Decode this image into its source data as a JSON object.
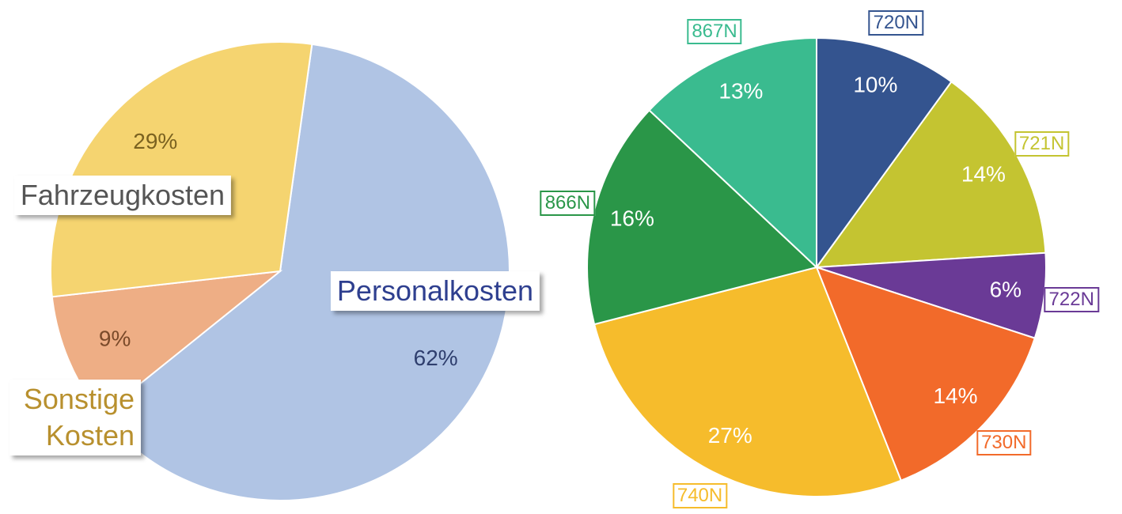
{
  "chart_data": [
    {
      "type": "pie",
      "categories": [
        "Personalkosten",
        "Sonstige Kosten",
        "Fahrzeugkosten"
      ],
      "values": [
        62,
        9,
        29
      ],
      "value_labels": [
        "62%",
        "9%",
        "29%"
      ],
      "colors": [
        "#b0c4e4",
        "#eeae85",
        "#f5d470"
      ],
      "label_colors": [
        "#2e3f8f",
        "#b8902e",
        "#555555"
      ],
      "value_label_colors": [
        "#2f3f6e",
        "#7a4a2a",
        "#7a6220"
      ]
    },
    {
      "type": "pie",
      "categories": [
        "720N",
        "721N",
        "722N",
        "730N",
        "740N",
        "866N",
        "867N"
      ],
      "values": [
        10,
        14,
        6,
        14,
        27,
        16,
        13
      ],
      "value_labels": [
        "10%",
        "14%",
        "6%",
        "14%",
        "27%",
        "16%",
        "13%"
      ],
      "colors": [
        "#34548f",
        "#c4c431",
        "#6a3a96",
        "#f26a2a",
        "#f6bc2c",
        "#2a9648",
        "#3abb8f"
      ]
    }
  ]
}
